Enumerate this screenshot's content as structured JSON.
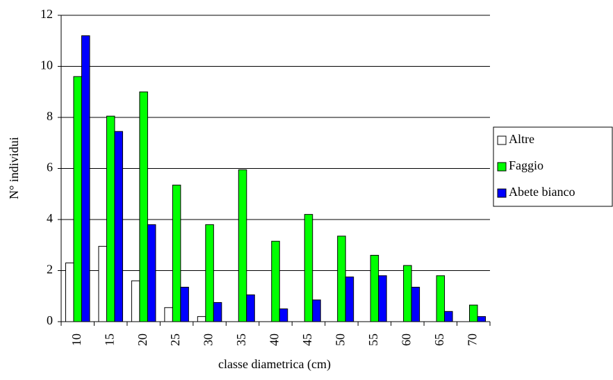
{
  "chart_data": {
    "type": "bar",
    "x_label": "classe diametrica (cm)",
    "y_label": "N° individui",
    "categories": [
      "10",
      "15",
      "20",
      "25",
      "30",
      "35",
      "40",
      "45",
      "50",
      "55",
      "60",
      "65",
      "70"
    ],
    "series": [
      {
        "name": "Altre",
        "color": "#ffffff",
        "values": [
          2.3,
          2.95,
          1.6,
          0.55,
          0.2,
          0,
          0,
          0,
          0,
          0,
          0,
          0,
          0
        ]
      },
      {
        "name": "Faggio",
        "color": "#00ff00",
        "values": [
          9.6,
          8.05,
          9.0,
          5.35,
          3.8,
          5.95,
          3.15,
          4.2,
          3.35,
          2.6,
          2.2,
          1.8,
          0.65
        ]
      },
      {
        "name": "Abete bianco",
        "color": "#0000ff",
        "values": [
          11.2,
          7.45,
          3.8,
          1.35,
          0.75,
          1.05,
          0.5,
          0.85,
          1.75,
          1.8,
          1.35,
          0.4,
          0.2
        ]
      }
    ],
    "ylim": [
      0,
      12
    ],
    "yticks": [
      0,
      2,
      4,
      6,
      8,
      10,
      12
    ],
    "grid": true,
    "legend": "right"
  }
}
